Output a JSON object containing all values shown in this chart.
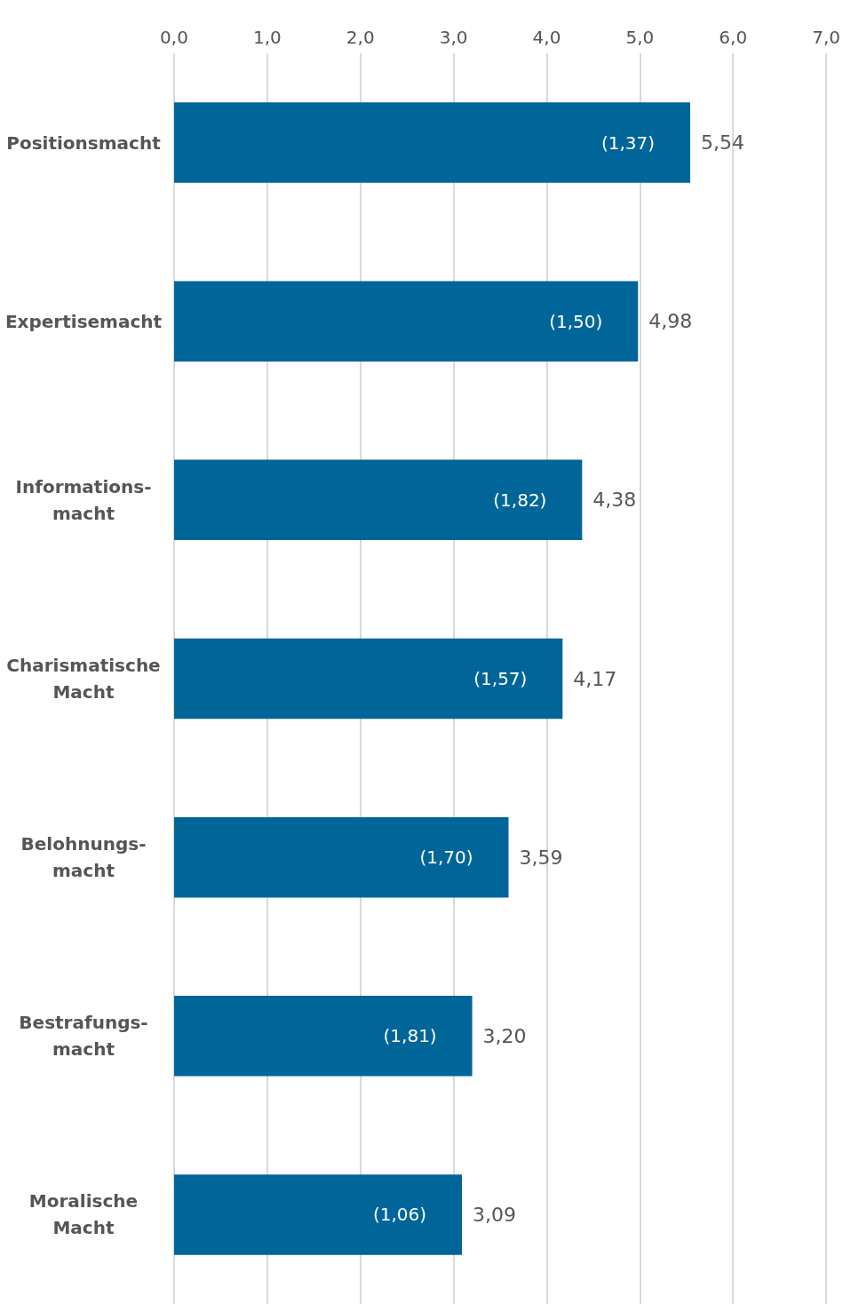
{
  "chart_data": {
    "type": "bar",
    "orientation": "horizontal",
    "categories": [
      "Positionsmacht",
      "Expertisemacht",
      "Informations-\nmacht",
      "Charismatische\nMacht",
      "Belohnungs-\nmacht",
      "Bestrafungs-\nmacht",
      "Moralische\nMacht"
    ],
    "values": [
      5.54,
      4.98,
      4.38,
      4.17,
      3.59,
      3.2,
      3.09
    ],
    "color": "#006699",
    "value_labels": [
      "5,54",
      "4,98",
      "4,38",
      "4,17",
      "3,59",
      "3,20",
      "3,09"
    ],
    "xlim": [
      0,
      7
    ],
    "xticks": [
      {
        "value": 0,
        "label": "0,0"
      },
      {
        "value": 1,
        "label": "1,0"
      },
      {
        "value": 2,
        "label": "2,0"
      },
      {
        "value": 3,
        "label": "3,0"
      },
      {
        "value": 4,
        "label": "4,0"
      },
      {
        "value": 5,
        "label": "5,0"
      },
      {
        "value": 6,
        "label": "6,0"
      },
      {
        "value": 7,
        "label": "7,0"
      }
    ],
    "grid": "x",
    "annotations": [
      "(1,37)",
      "(1,50)",
      "(1,82)",
      "(1,57)",
      "(1,70)",
      "(1,81)",
      "(1,06)"
    ]
  }
}
